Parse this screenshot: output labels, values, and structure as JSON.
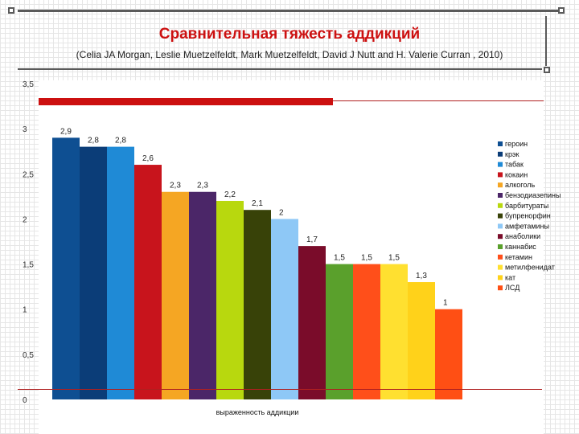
{
  "chart_data": {
    "type": "bar",
    "title": "Сравнительная тяжесть аддикций",
    "subtitle": "(Celia JA Morgan, Leslie Muetzelfeldt, Mark Muetzelfeldt, David J Nutt and H. Valerie Curran , 2010)",
    "xlabel": "выраженность аддикции",
    "ylabel": "",
    "ylim": [
      0,
      3.5
    ],
    "yticks": [
      "0",
      "0,5",
      "1",
      "1,5",
      "2",
      "2,5",
      "3",
      "3,5"
    ],
    "legend_position": "right",
    "series": [
      {
        "name": "героин",
        "value": 2.9,
        "label": "2,9",
        "color": "#0e4f92"
      },
      {
        "name": "крэк",
        "value": 2.8,
        "label": "2,8",
        "color": "#0b3d78"
      },
      {
        "name": "табак",
        "value": 2.8,
        "label": "2,8",
        "color": "#1f8ad6"
      },
      {
        "name": "кокаин",
        "value": 2.6,
        "label": "2,6",
        "color": "#c8141c"
      },
      {
        "name": "алкоголь",
        "value": 2.3,
        "label": "2,3",
        "color": "#f5a623"
      },
      {
        "name": "бензодиазепины",
        "value": 2.3,
        "label": "2,3",
        "color": "#4b2668"
      },
      {
        "name": "барбитураты",
        "value": 2.2,
        "label": "2,2",
        "color": "#b8d80e"
      },
      {
        "name": "бупренорфин",
        "value": 2.1,
        "label": "2,1",
        "color": "#384208"
      },
      {
        "name": "амфетамины",
        "value": 2.0,
        "label": "2",
        "color": "#8ec8f6"
      },
      {
        "name": "анаболики",
        "value": 1.7,
        "label": "1,7",
        "color": "#7a0c2a"
      },
      {
        "name": "каннабис",
        "value": 1.5,
        "label": "1,5",
        "color": "#5aa02c"
      },
      {
        "name": "кетамин",
        "value": 1.5,
        "label": "1,5",
        "color": "#ff4f1a"
      },
      {
        "name": "метилфенидат",
        "value": 1.5,
        "label": "1,5",
        "color": "#ffe030"
      },
      {
        "name": "кат",
        "value": 1.3,
        "label": "1,3",
        "color": "#ffd21a"
      },
      {
        "name": "ЛСД",
        "value": 1.0,
        "label": "1",
        "color": "#ff4f14"
      }
    ]
  }
}
